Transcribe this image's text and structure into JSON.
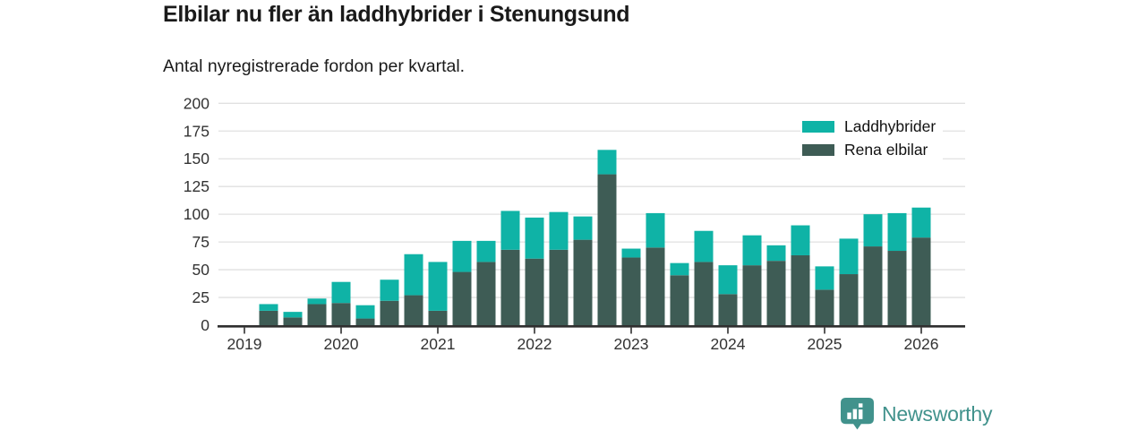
{
  "chart_data": {
    "type": "bar",
    "stacked": true,
    "title": "Elbilar nu fler än laddhybrider i Stenungsund",
    "subtitle": "Antal nyregistrerade fordon per kvartal.",
    "categories": [
      "2019 Q1",
      "2019 Q2",
      "2019 Q3",
      "2019 Q4",
      "2020 Q1",
      "2020 Q2",
      "2020 Q3",
      "2020 Q4",
      "2021 Q1",
      "2021 Q2",
      "2021 Q3",
      "2021 Q4",
      "2022 Q1",
      "2022 Q2",
      "2022 Q3",
      "2022 Q4",
      "2023 Q1",
      "2023 Q2",
      "2023 Q3",
      "2023 Q4",
      "2024 Q1",
      "2024 Q2",
      "2024 Q3",
      "2024 Q4",
      "2025 Q1",
      "2025 Q2",
      "2025 Q3",
      "2025 Q4",
      "2026 Q1"
    ],
    "x_tick_labels": [
      "2019",
      "2020",
      "2021",
      "2022",
      "2023",
      "2024",
      "2025",
      "2026"
    ],
    "series": [
      {
        "name": "Laddhybrider",
        "color": "#0fb3a6",
        "values": [
          0,
          6,
          5,
          5,
          19,
          12,
          19,
          37,
          44,
          28,
          19,
          35,
          37,
          34,
          21,
          22,
          8,
          31,
          11,
          28,
          26,
          27,
          14,
          27,
          21,
          32,
          29,
          34,
          27
        ]
      },
      {
        "name": "Rena elbilar",
        "color": "#3e5c55",
        "values": [
          0,
          13,
          7,
          19,
          20,
          6,
          22,
          27,
          13,
          48,
          57,
          68,
          60,
          68,
          77,
          136,
          61,
          70,
          45,
          57,
          28,
          54,
          58,
          63,
          32,
          46,
          71,
          67,
          79
        ]
      }
    ],
    "stack_order_bottom_to_top": [
      "Rena elbilar",
      "Laddhybrider"
    ],
    "ylim": [
      0,
      200
    ],
    "yticks": [
      0,
      25,
      50,
      75,
      100,
      125,
      150,
      175,
      200
    ],
    "grid": "horizontal",
    "legend_position": "top-right"
  },
  "branding": {
    "logo_text": "Newsworthy",
    "logo_color": "#41928c"
  },
  "colors": {
    "gridline": "#e0e0e0",
    "axis_line": "#2f2f2f",
    "axis_text": "#333333",
    "title_text": "#1a1a1a"
  }
}
